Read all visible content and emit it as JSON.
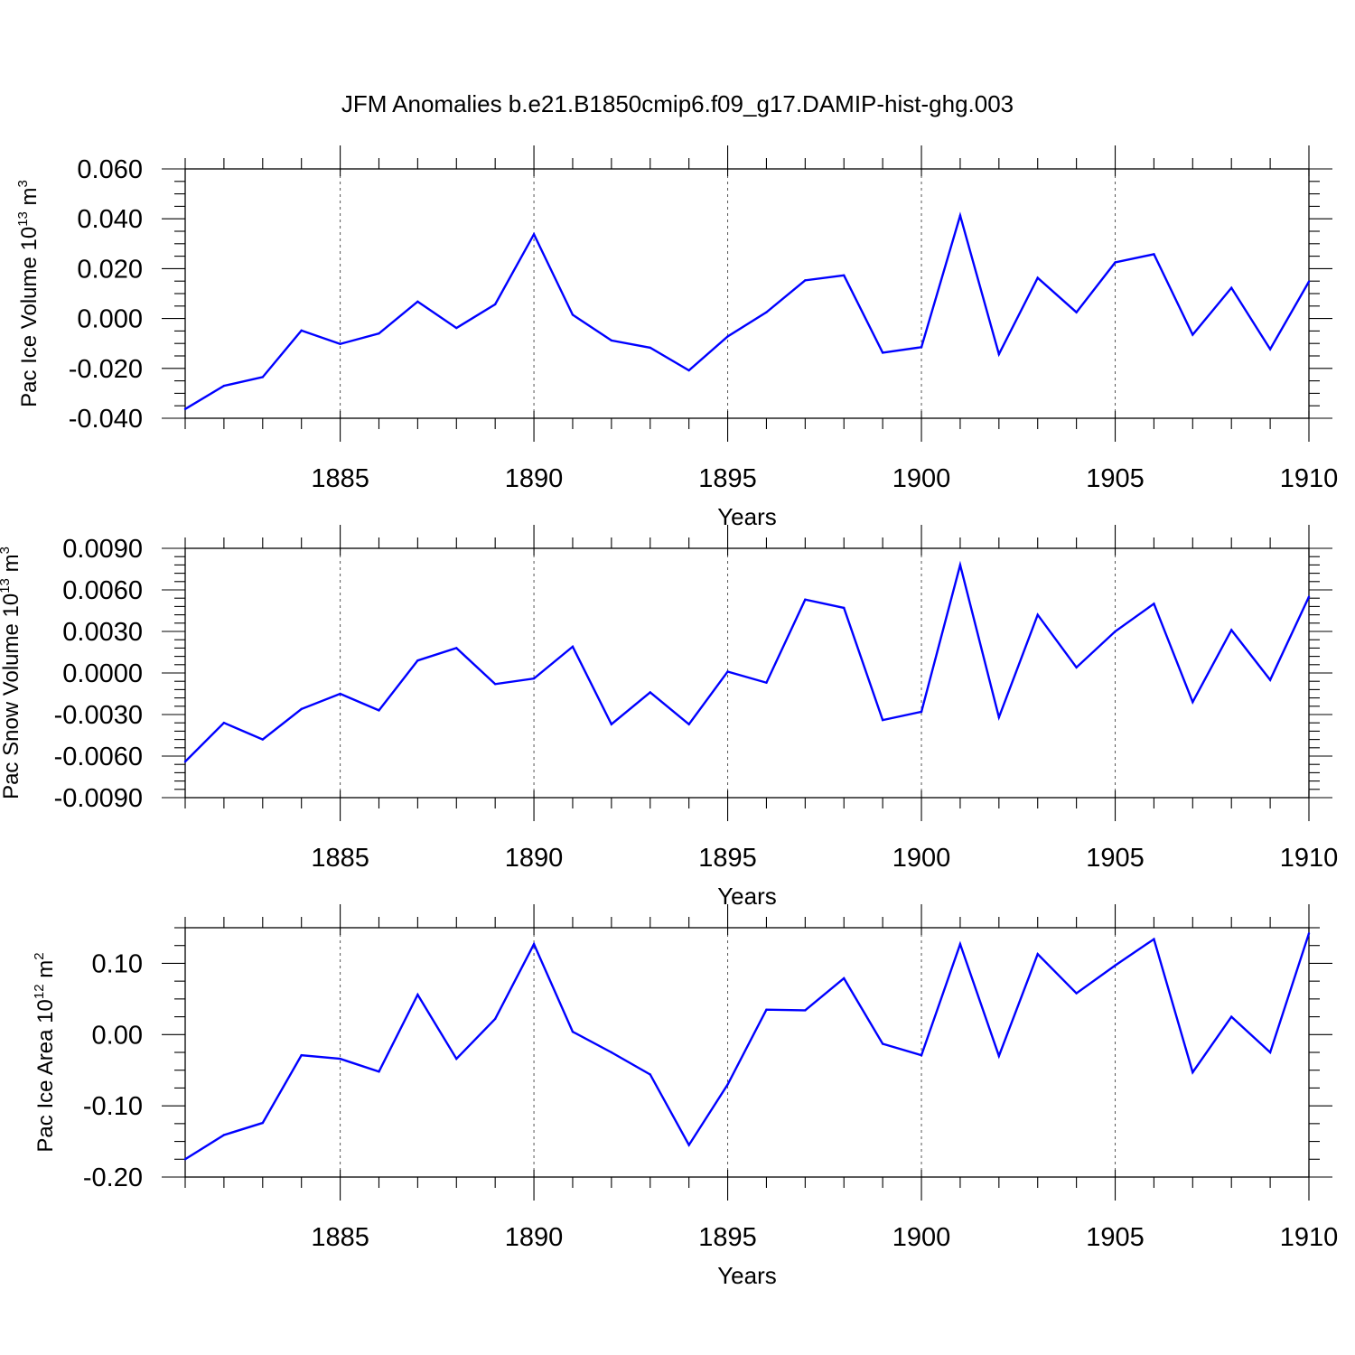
{
  "chart_data": {
    "type": "line",
    "title": "JFM Anomalies b.e21.B1850cmip6.f09_g17.DAMIP-hist-ghg.003",
    "line_color": "#0000ff",
    "x": [
      1881,
      1882,
      1883,
      1884,
      1885,
      1886,
      1887,
      1888,
      1889,
      1890,
      1891,
      1892,
      1893,
      1894,
      1895,
      1896,
      1897,
      1898,
      1899,
      1900,
      1901,
      1902,
      1903,
      1904,
      1905,
      1906,
      1907,
      1908,
      1909,
      1910
    ],
    "xlim": [
      1881,
      1910
    ],
    "x_ticks": [
      1885,
      1890,
      1895,
      1900,
      1905,
      1910
    ],
    "xlabel": "Years",
    "panels": [
      {
        "name": "pac-ice-volume",
        "ylabel_main": "Pac Ice Volume 10",
        "ylabel_exp": "13",
        "ylabel_unit": " m",
        "ylabel_unit_exp": "3",
        "ylim": [
          -0.04,
          0.06
        ],
        "y_ticks": [
          "0.060",
          "0.040",
          "0.020",
          "0.000",
          "-0.020",
          "-0.040"
        ],
        "values": [
          -0.0363,
          -0.027,
          -0.0235,
          -0.0048,
          -0.0102,
          -0.006,
          0.0068,
          -0.0038,
          0.0057,
          0.0338,
          0.0015,
          -0.0088,
          -0.0117,
          -0.0208,
          -0.0072,
          0.0025,
          0.0153,
          0.0173,
          -0.0137,
          -0.0115,
          0.0413,
          -0.0143,
          0.0163,
          0.0025,
          0.0225,
          0.0258,
          -0.0065,
          0.0123,
          -0.0123,
          0.0148
        ]
      },
      {
        "name": "pac-snow-volume",
        "ylabel_main": "Pac Snow Volume 10",
        "ylabel_exp": "13",
        "ylabel_unit": " m",
        "ylabel_unit_exp": "3",
        "ylim": [
          -0.009,
          0.009
        ],
        "y_ticks": [
          "0.0090",
          "0.0060",
          "0.0030",
          "0.0000",
          "-0.0030",
          "-0.0060",
          "-0.0090"
        ],
        "values": [
          -0.0064,
          -0.0036,
          -0.0048,
          -0.0026,
          -0.0015,
          -0.0027,
          0.0009,
          0.0018,
          -0.0008,
          -0.0004,
          0.0019,
          -0.0037,
          -0.0014,
          -0.0037,
          0.0001,
          -0.0007,
          0.0053,
          0.0047,
          -0.0034,
          -0.0028,
          0.0078,
          -0.0032,
          0.0042,
          0.0004,
          0.003,
          0.005,
          -0.0021,
          0.0031,
          -0.0005,
          0.0055
        ]
      },
      {
        "name": "pac-ice-area",
        "ylabel_main": "Pac Ice Area 10",
        "ylabel_exp": "12",
        "ylabel_unit": " m",
        "ylabel_unit_exp": "2",
        "ylim": [
          -0.2,
          0.15
        ],
        "y_ticks": [
          "0.10",
          "0.00",
          "-0.10",
          "-0.20"
        ],
        "values": [
          -0.175,
          -0.141,
          -0.124,
          -0.029,
          -0.034,
          -0.052,
          0.056,
          -0.034,
          0.022,
          0.127,
          0.004,
          -0.025,
          -0.056,
          -0.155,
          -0.07,
          0.035,
          0.034,
          0.079,
          -0.013,
          -0.029,
          0.127,
          -0.03,
          0.113,
          0.058,
          0.097,
          0.134,
          -0.053,
          0.025,
          -0.025,
          0.142
        ]
      }
    ]
  }
}
